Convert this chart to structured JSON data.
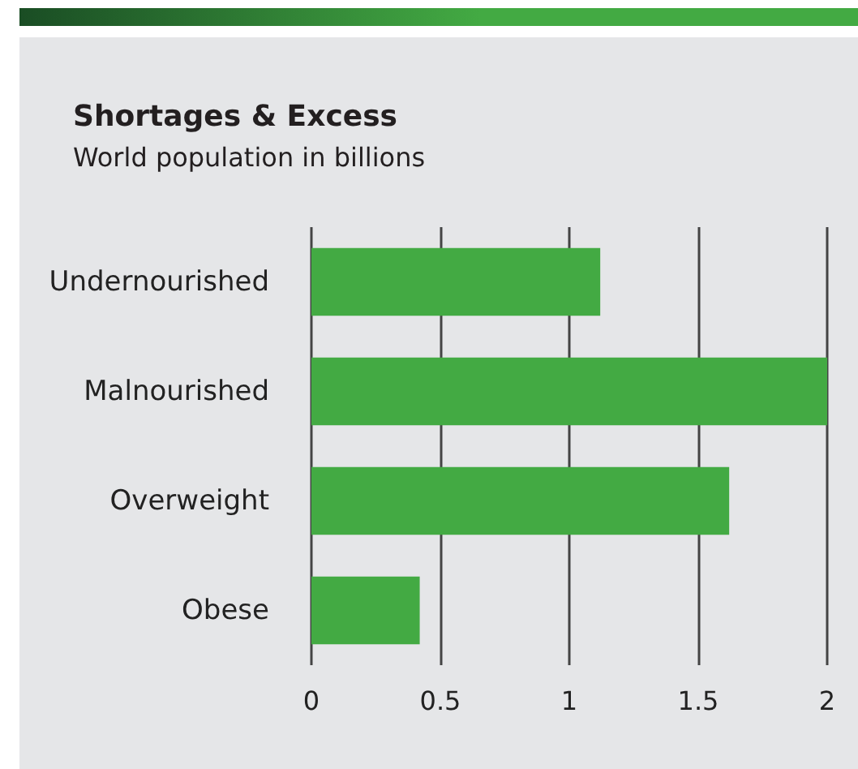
{
  "chart_data": {
    "type": "bar",
    "orientation": "horizontal",
    "title": "Shortages & Excess",
    "subtitle": "World population in billions",
    "categories": [
      "Undernourished",
      "Malnourished",
      "Overweight",
      "Obese"
    ],
    "values": [
      1.12,
      2,
      1.62,
      0.42
    ],
    "color": "#43aa43",
    "xlim": [
      0,
      2
    ],
    "xticks": [
      {
        "value": 0,
        "label": "0"
      },
      0.5,
      1,
      1.5,
      2
    ],
    "grid": "x"
  }
}
